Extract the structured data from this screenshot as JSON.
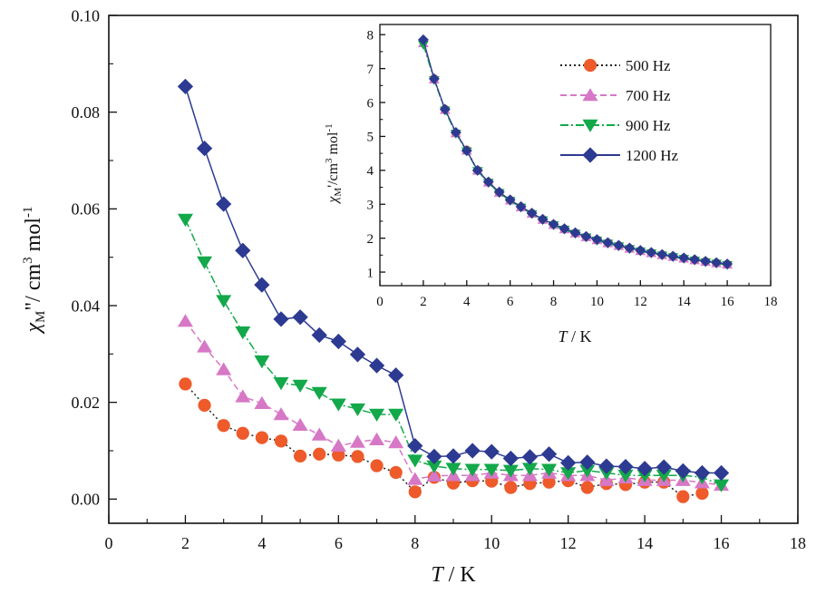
{
  "chart_data": [
    {
      "type": "line",
      "id": "main",
      "xlabel_italic": "T",
      "xlabel_unit": " / K",
      "ylabel_chi": "χ",
      "ylabel_sub": "M",
      "ylabel_rest": "\"/ cm",
      "ylabel_exp": "3",
      "ylabel_unit": " mol",
      "ylabel_unit_exp": "-1",
      "xlim": [
        0,
        18
      ],
      "ylim": [
        -0.005,
        0.1
      ],
      "xticks": [
        0,
        2,
        4,
        6,
        8,
        10,
        12,
        14,
        16,
        18
      ],
      "yticks": [
        0.0,
        0.02,
        0.04,
        0.06,
        0.08,
        0.1
      ],
      "ytick_labels": [
        "0.00",
        "0.02",
        "0.04",
        "0.06",
        "0.08",
        "0.10"
      ],
      "x": [
        2,
        2.5,
        3,
        3.5,
        4,
        4.5,
        5,
        5.5,
        6,
        6.5,
        7,
        7.5,
        8,
        8.5,
        9,
        9.5,
        10,
        10.5,
        11,
        11.5,
        12,
        12.5,
        13,
        13.5,
        14,
        14.5,
        15,
        15.5,
        16
      ],
      "series": [
        {
          "name": "500 Hz",
          "marker": "circle",
          "color": "#ee5a2a",
          "line_color": "#222222",
          "dash": "2,3",
          "values": [
            0.0238,
            0.0194,
            0.0152,
            0.0136,
            0.0127,
            0.012,
            0.0089,
            0.0093,
            0.0091,
            0.0088,
            0.0069,
            0.0055,
            0.0015,
            0.0045,
            0.0033,
            0.0038,
            0.0037,
            0.0024,
            0.0032,
            0.0035,
            0.0038,
            0.0024,
            0.0032,
            0.003,
            0.0035,
            0.0035,
            0.0005,
            0.0012,
            null
          ]
        },
        {
          "name": "700 Hz",
          "marker": "triangle-up",
          "color": "#d678c6",
          "line_color": "#d678c6",
          "dash": "7,4",
          "values": [
            0.0368,
            0.0315,
            0.0268,
            0.0212,
            0.0198,
            0.0175,
            0.0153,
            0.0133,
            0.011,
            0.0118,
            0.0123,
            0.0117,
            0.0041,
            0.0048,
            0.0049,
            0.0049,
            0.0054,
            0.0049,
            0.0049,
            0.0054,
            0.0049,
            0.0049,
            0.0039,
            0.0044,
            0.0039,
            0.0039,
            0.0039,
            0.0034,
            0.0029
          ]
        },
        {
          "name": "900 Hz",
          "marker": "triangle-down",
          "color": "#13a84a",
          "line_color": "#13a84a",
          "dash": "9,3,2,3",
          "values": [
            0.0578,
            0.049,
            0.041,
            0.0345,
            0.0285,
            0.024,
            0.0235,
            0.022,
            0.0196,
            0.0186,
            0.0175,
            0.0175,
            0.008,
            0.0068,
            0.0063,
            0.0061,
            0.0061,
            0.0059,
            0.0063,
            0.0061,
            0.0054,
            0.0059,
            0.0054,
            0.0049,
            0.0049,
            0.0049,
            0.0049,
            0.0045,
            0.0029
          ]
        },
        {
          "name": "1200 Hz",
          "marker": "diamond",
          "color": "#2c3a91",
          "line_color": "#2c3a91",
          "dash": "",
          "values": [
            0.0853,
            0.0725,
            0.061,
            0.0514,
            0.0443,
            0.0372,
            0.0376,
            0.0339,
            0.0326,
            0.0299,
            0.0276,
            0.0256,
            0.011,
            0.0088,
            0.0089,
            0.01,
            0.0098,
            0.0084,
            0.0087,
            0.0093,
            0.0075,
            0.0076,
            0.0068,
            0.0067,
            0.0063,
            0.0066,
            0.0058,
            0.0054,
            0.0054
          ]
        }
      ]
    },
    {
      "type": "line",
      "id": "inset",
      "xlabel_italic": "T",
      "xlabel_unit": " / K",
      "ylabel_chi": "χ",
      "ylabel_sub": "M",
      "ylabel_rest": "'/cm",
      "ylabel_exp": "3",
      "ylabel_unit": " mol",
      "ylabel_unit_exp": "-1",
      "xlim": [
        0,
        18
      ],
      "ylim": [
        0.6,
        8.3
      ],
      "xticks": [
        0,
        2,
        4,
        6,
        8,
        10,
        12,
        14,
        16,
        18
      ],
      "yticks": [
        1,
        2,
        3,
        4,
        5,
        6,
        7,
        8
      ],
      "ytick_labels": [
        "1",
        "2",
        "3",
        "4",
        "5",
        "6",
        "7",
        "8"
      ],
      "x": [
        2,
        2.5,
        3,
        3.5,
        4,
        4.5,
        5,
        5.5,
        6,
        6.5,
        7,
        7.5,
        8,
        8.5,
        9,
        9.5,
        10,
        10.5,
        11,
        11.5,
        12,
        12.5,
        13,
        13.5,
        14,
        14.5,
        15,
        15.5,
        16
      ],
      "series": [
        {
          "name": "500 Hz",
          "marker": "circle",
          "color": "#ee5a2a",
          "line_color": "#222222",
          "dash": "2,3",
          "values": [
            7.8,
            6.7,
            5.8,
            5.1,
            4.6,
            4.0,
            3.65,
            3.35,
            3.12,
            2.92,
            2.73,
            2.55,
            2.4,
            2.27,
            2.15,
            2.04,
            1.95,
            1.86,
            1.78,
            1.7,
            1.63,
            1.57,
            1.51,
            1.46,
            1.41,
            1.36,
            1.31,
            1.27,
            1.23
          ]
        },
        {
          "name": "700 Hz",
          "marker": "triangle-up",
          "color": "#d678c6",
          "line_color": "#d678c6",
          "dash": "7,4",
          "values": [
            7.75,
            6.68,
            5.78,
            5.09,
            4.58,
            3.99,
            3.64,
            3.34,
            3.11,
            2.91,
            2.72,
            2.54,
            2.39,
            2.26,
            2.14,
            2.03,
            1.94,
            1.85,
            1.77,
            1.69,
            1.62,
            1.56,
            1.5,
            1.45,
            1.4,
            1.35,
            1.3,
            1.26,
            1.22
          ]
        },
        {
          "name": "900 Hz",
          "marker": "triangle-down",
          "color": "#13a84a",
          "line_color": "#13a84a",
          "dash": "9,3,2,3",
          "values": [
            7.7,
            6.66,
            5.76,
            5.08,
            4.56,
            3.98,
            3.63,
            3.33,
            3.1,
            2.9,
            2.71,
            2.53,
            2.38,
            2.25,
            2.13,
            2.02,
            1.93,
            1.84,
            1.76,
            1.68,
            1.61,
            1.55,
            1.49,
            1.44,
            1.39,
            1.34,
            1.29,
            1.25,
            1.21
          ]
        },
        {
          "name": "1200 Hz",
          "marker": "diamond",
          "color": "#2c3a91",
          "line_color": "#2c3a91",
          "dash": "",
          "values": [
            7.85,
            6.7,
            5.8,
            5.12,
            4.58,
            4.0,
            3.66,
            3.36,
            3.13,
            2.93,
            2.74,
            2.56,
            2.41,
            2.28,
            2.16,
            2.05,
            1.96,
            1.87,
            1.79,
            1.71,
            1.64,
            1.58,
            1.52,
            1.47,
            1.42,
            1.37,
            1.32,
            1.28,
            1.24
          ]
        }
      ]
    }
  ]
}
